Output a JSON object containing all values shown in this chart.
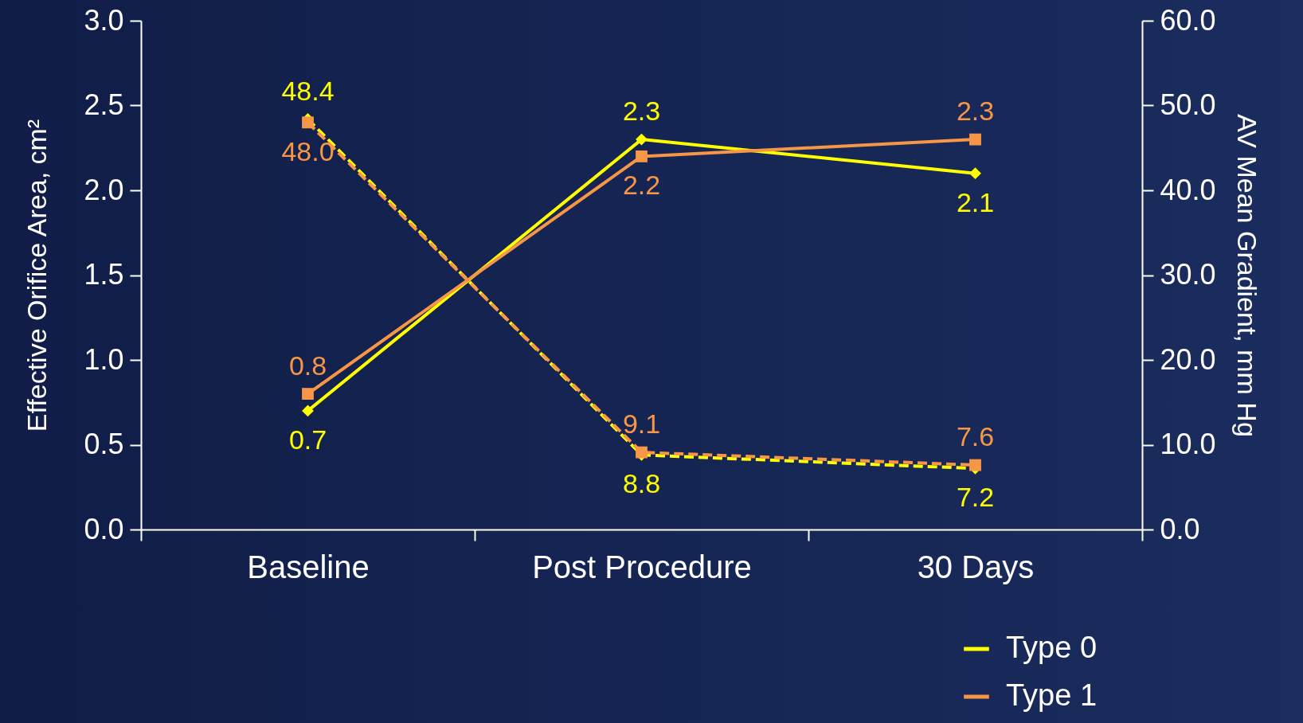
{
  "chart_data": {
    "type": "line",
    "categories": [
      "Baseline",
      "Post Procedure",
      "30 Days"
    ],
    "ylabel": "Effective Orifice Area, cm²",
    "y2label": "AV Mean Gradient, mm Hg",
    "series": [
      {
        "name": "Type 0",
        "color": "#ffff00",
        "values": [
          0.7,
          2.3,
          2.1
        ],
        "value_labels": [
          "0.7",
          "2.3",
          "2.1"
        ],
        "marker": "diamond",
        "line_style": "solid"
      },
      {
        "name": "Type 1",
        "color": "#f79646",
        "values": [
          0.8,
          2.2,
          2.3
        ],
        "value_labels": [
          "0.8",
          "2.2",
          "2.3"
        ],
        "marker": "square",
        "line_style": "solid"
      },
      {
        "color": "#ffff00",
        "values": [
          48.4,
          8.8,
          7.2
        ],
        "value_labels": [
          "48.4",
          "8.8",
          "7.2"
        ],
        "marker": "diamond",
        "line_style": "dashed",
        "axis": "y2"
      },
      {
        "color": "#f79646",
        "values": [
          48.0,
          9.1,
          7.6
        ],
        "value_labels": [
          "48.0",
          "9.1",
          "7.6"
        ],
        "marker": "square",
        "line_style": "dashed",
        "axis": "y2"
      }
    ],
    "ylim": [
      0,
      3
    ],
    "yticks": [
      {
        "value": 0,
        "label": "0.0"
      },
      {
        "value": 0.5,
        "label": "0.5"
      },
      {
        "value": 1,
        "label": "1.0"
      },
      {
        "value": 1.5,
        "label": "1.5"
      },
      {
        "value": 2,
        "label": "2.0"
      },
      {
        "value": 2.5,
        "label": "2.5"
      },
      {
        "value": 3,
        "label": "3.0"
      }
    ],
    "y2lim": [
      0,
      60
    ],
    "y2ticks": [
      {
        "value": 0,
        "label": "0.0"
      },
      {
        "value": 10,
        "label": "10.0"
      },
      {
        "value": 20,
        "label": "20.0"
      },
      {
        "value": 30,
        "label": "30.0"
      },
      {
        "value": 40,
        "label": "40.0"
      },
      {
        "value": 50,
        "label": "50.0"
      },
      {
        "value": 60,
        "label": "60.0"
      }
    ],
    "legend": "bottom right",
    "grid": false
  }
}
